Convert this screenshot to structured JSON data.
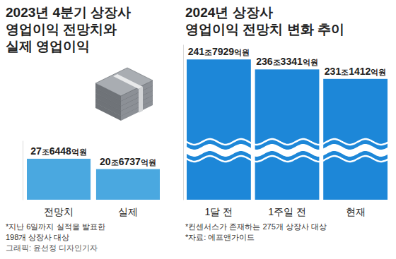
{
  "chart_data": [
    {
      "type": "bar",
      "title": "2023년 4분기 상장사\n영업이익 전망치와\n실제 영업이익",
      "categories": [
        "전망치",
        "실제"
      ],
      "values": [
        276448,
        206737
      ],
      "value_labels": [
        "27조6448억원",
        "20조6737억원"
      ],
      "color": "#4aa8e0",
      "ylim": [
        0,
        400000
      ],
      "yticks": [],
      "tick_labels": "x",
      "data_labels": true,
      "annotations": [
        "*지난 6일까지 실적을 발표한",
        "198개 상장사 대상",
        "그래픽: 윤선정 디자인기자"
      ]
    },
    {
      "type": "bar",
      "title": "2024년 상장사\n영업이익 전망치 변화 추이",
      "categories": [
        "1달 전",
        "1주일 전",
        "현재"
      ],
      "values": [
        2417929,
        2363341,
        2311412
      ],
      "value_labels": [
        "241조7929억원",
        "236조3341억원",
        "231조1412억원"
      ],
      "color": "#1d87d8",
      "ylim": [
        1650000,
        2500000
      ],
      "yticks": [],
      "tick_labels": "x",
      "data_labels": true,
      "annotations": [
        "*컨센서스가 존재하는 275개 상장사 대상",
        "*자료: 에프앤가이드"
      ]
    }
  ]
}
